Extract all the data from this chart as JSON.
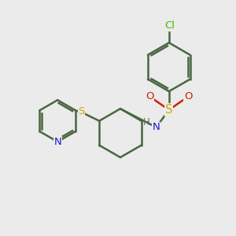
{
  "background_color": "#ebebeb",
  "bond_color": "#4a6741",
  "bond_width": 1.8,
  "atom_colors": {
    "C": "#4a6741",
    "N": "#1a1acc",
    "S": "#ccaa00",
    "O": "#cc2200",
    "Cl": "#44bb00",
    "H": "#666666"
  },
  "font_size": 9.5
}
